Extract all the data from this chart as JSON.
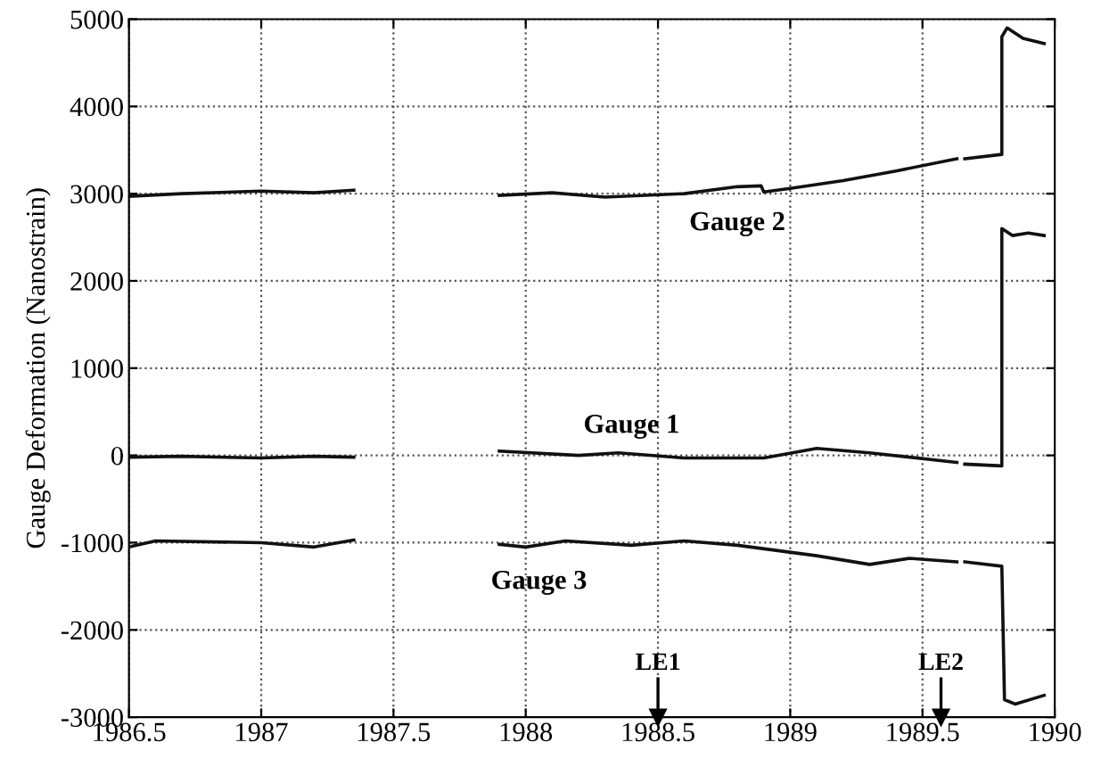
{
  "chart_data": {
    "type": "line",
    "ylabel": "Gauge Deformation (Nanostrain)",
    "series": [
      {
        "color": "#111111",
        "x": [
          1986.5,
          1986.7,
          1987.0,
          1987.2,
          1987.35,
          1987.6,
          1987.9,
          1988.1,
          1988.3,
          1988.6,
          1988.8,
          1988.89,
          1988.9,
          1989.0,
          1989.2,
          1989.4,
          1989.63,
          1989.645,
          1989.66,
          1989.8,
          1989.8,
          1989.82,
          1989.88,
          1989.96
        ],
        "values": [
          2970,
          3000,
          3030,
          3010,
          3040,
          null,
          2980,
          3010,
          2960,
          3000,
          3080,
          3090,
          3020,
          3060,
          3150,
          3260,
          3400,
          null,
          3400,
          3450,
          4800,
          4900,
          4780,
          4720
        ]
      },
      {
        "color": "#111111",
        "x": [
          1986.5,
          1986.7,
          1987.0,
          1987.2,
          1987.35,
          1987.6,
          1987.9,
          1988.2,
          1988.35,
          1988.6,
          1988.9,
          1989.1,
          1989.3,
          1989.63,
          1989.645,
          1989.66,
          1989.8,
          1989.8,
          1989.84,
          1989.9,
          1989.96
        ],
        "values": [
          -20,
          -10,
          -30,
          -10,
          -20,
          null,
          50,
          0,
          30,
          -30,
          -30,
          80,
          30,
          -80,
          null,
          -100,
          -120,
          2600,
          2520,
          2550,
          2520
        ]
      },
      {
        "color": "#111111",
        "x": [
          1986.5,
          1986.6,
          1987.0,
          1987.2,
          1987.35,
          1987.6,
          1987.9,
          1988.0,
          1988.15,
          1988.4,
          1988.6,
          1988.8,
          1989.1,
          1989.3,
          1989.45,
          1989.63,
          1989.645,
          1989.66,
          1989.8,
          1989.81,
          1989.85,
          1989.96
        ],
        "values": [
          -1050,
          -980,
          -1000,
          -1050,
          -970,
          null,
          -1020,
          -1050,
          -980,
          -1030,
          -980,
          -1030,
          -1150,
          -1250,
          -1180,
          -1220,
          null,
          -1220,
          -1270,
          -2800,
          -2850,
          -2750
        ]
      }
    ],
    "xlim": [
      1986.5,
      1990
    ],
    "xticks": [
      1986.5,
      1987,
      1987.5,
      1988,
      1988.5,
      1989,
      1989.5,
      1990
    ],
    "ylim": [
      -3000,
      5000
    ],
    "yticks": [
      -3000,
      -2000,
      -1000,
      0,
      1000,
      2000,
      3000,
      4000,
      5000
    ],
    "grid": true,
    "marker": "none",
    "line_style": "solid",
    "ref_lines": [
      {
        "axis": "x",
        "value": 1988.5,
        "label": "LE1"
      },
      {
        "axis": "x",
        "value": 1989.57,
        "label": "LE2"
      }
    ],
    "annotations": [
      {
        "text": "Gauge 2",
        "x": 1988.8,
        "y": 3080
      },
      {
        "text": "Gauge 1",
        "x": 1988.4,
        "y": 20
      },
      {
        "text": "Gauge 3",
        "x": 1988.05,
        "y": -1030
      }
    ]
  }
}
